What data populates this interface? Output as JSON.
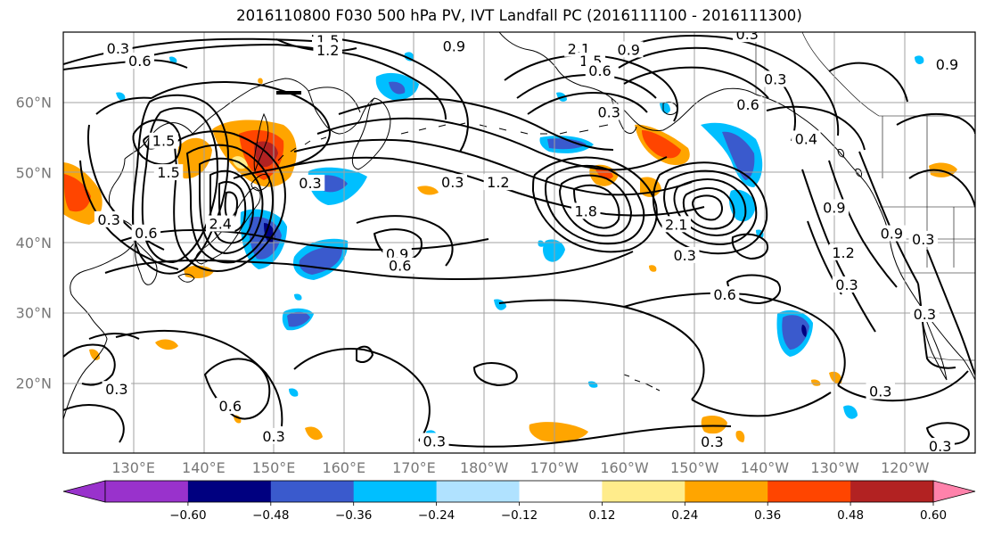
{
  "title": "2016110800 F030 500 hPa PV, IVT Landfall PC (2016111100 - 2016111300)",
  "map": {
    "projection": "PlateCarree",
    "extent": {
      "lon_min": 120,
      "lon_max": 250,
      "lat_min": 10,
      "lat_max": 70
    },
    "gridlines": true
  },
  "axes": {
    "lat_ticks": [
      {
        "value": 20,
        "label": "20°N"
      },
      {
        "value": 30,
        "label": "30°N"
      },
      {
        "value": 40,
        "label": "40°N"
      },
      {
        "value": 50,
        "label": "50°N"
      },
      {
        "value": 60,
        "label": "60°N"
      }
    ],
    "lon_ticks": [
      {
        "value": 130,
        "label": "130°E"
      },
      {
        "value": 140,
        "label": "140°E"
      },
      {
        "value": 150,
        "label": "150°E"
      },
      {
        "value": 160,
        "label": "160°E"
      },
      {
        "value": 170,
        "label": "170°E"
      },
      {
        "value": 180,
        "label": "180°W"
      },
      {
        "value": 190,
        "label": "170°W"
      },
      {
        "value": 200,
        "label": "160°W"
      },
      {
        "value": 210,
        "label": "150°W"
      },
      {
        "value": 220,
        "label": "140°W"
      },
      {
        "value": 230,
        "label": "130°W"
      },
      {
        "value": 240,
        "label": "120°W"
      }
    ]
  },
  "colorbar": {
    "extend": "both",
    "bounds": [
      -0.72,
      -0.6,
      -0.48,
      -0.36,
      -0.24,
      -0.12,
      0.12,
      0.24,
      0.36,
      0.48,
      0.6,
      0.72
    ],
    "tick_values": [
      -0.6,
      -0.48,
      -0.36,
      -0.24,
      -0.12,
      0.12,
      0.24,
      0.36,
      0.48,
      0.6
    ],
    "tick_labels": [
      "−0.60",
      "−0.48",
      "−0.36",
      "−0.24",
      "−0.12",
      "0.12",
      "0.24",
      "0.36",
      "0.48",
      "0.60"
    ],
    "colors": {
      "under": "#9932cc",
      "bins": [
        "#9932cc",
        "#000080",
        "#3a5acd",
        "#00bfff",
        "#b0e2ff",
        "#ffffff",
        "#ffec8b",
        "#ffa500",
        "#ff4500",
        "#b22222"
      ],
      "over": "#ff82ab"
    }
  },
  "pv_contour_labels": [
    {
      "text": "0.3",
      "lon": 127.8,
      "lat": 67.6
    },
    {
      "text": "0.6",
      "lon": 130.9,
      "lat": 65.8
    },
    {
      "text": "1.5",
      "lon": 157.7,
      "lat": 68.7
    },
    {
      "text": "1.2",
      "lon": 157.7,
      "lat": 67.3
    },
    {
      "text": "0.9",
      "lon": 175.7,
      "lat": 67.9
    },
    {
      "text": "2.1",
      "lon": 193.5,
      "lat": 67.5
    },
    {
      "text": "1.5",
      "lon": 195.2,
      "lat": 65.8
    },
    {
      "text": "0.6",
      "lon": 196.5,
      "lat": 64.4
    },
    {
      "text": "0.9",
      "lon": 200.6,
      "lat": 67.4
    },
    {
      "text": "0.3",
      "lon": 221.5,
      "lat": 63.2
    },
    {
      "text": "0.3",
      "lon": 217.5,
      "lat": 69.6
    },
    {
      "text": "0.9",
      "lon": 246.0,
      "lat": 65.3
    },
    {
      "text": "0.3",
      "lon": 197.8,
      "lat": 58.5
    },
    {
      "text": "0.6",
      "lon": 217.6,
      "lat": 59.6
    },
    {
      "text": "0.4",
      "lon": 225.9,
      "lat": 54.7
    },
    {
      "text": "1.5",
      "lon": 134.3,
      "lat": 54.4
    },
    {
      "text": "1.5",
      "lon": 135.0,
      "lat": 49.9
    },
    {
      "text": "0.3",
      "lon": 126.5,
      "lat": 43.2
    },
    {
      "text": "0.6",
      "lon": 131.8,
      "lat": 41.3
    },
    {
      "text": "2.4",
      "lon": 142.4,
      "lat": 42.6
    },
    {
      "text": "0.3",
      "lon": 155.2,
      "lat": 48.4
    },
    {
      "text": "0.3",
      "lon": 175.5,
      "lat": 48.5
    },
    {
      "text": "1.2",
      "lon": 182.0,
      "lat": 48.5
    },
    {
      "text": "1.8",
      "lon": 194.5,
      "lat": 44.4
    },
    {
      "text": "2.1",
      "lon": 207.4,
      "lat": 42.5
    },
    {
      "text": "0.9",
      "lon": 229.9,
      "lat": 44.9
    },
    {
      "text": "1.2",
      "lon": 231.2,
      "lat": 38.5
    },
    {
      "text": "0.9",
      "lon": 238.1,
      "lat": 41.2
    },
    {
      "text": "0.3",
      "lon": 242.6,
      "lat": 40.4
    },
    {
      "text": "0.3",
      "lon": 231.7,
      "lat": 33.9
    },
    {
      "text": "0.3",
      "lon": 208.6,
      "lat": 38.1
    },
    {
      "text": "0.9",
      "lon": 167.6,
      "lat": 38.3
    },
    {
      "text": "0.6",
      "lon": 168.0,
      "lat": 36.6
    },
    {
      "text": "0.6",
      "lon": 214.3,
      "lat": 32.5
    },
    {
      "text": "0.3",
      "lon": 242.8,
      "lat": 29.7
    },
    {
      "text": "0.3",
      "lon": 127.6,
      "lat": 19.0
    },
    {
      "text": "0.6",
      "lon": 143.8,
      "lat": 16.6
    },
    {
      "text": "0.3",
      "lon": 150.0,
      "lat": 12.3
    },
    {
      "text": "0.3",
      "lon": 172.9,
      "lat": 11.6
    },
    {
      "text": "0.3",
      "lon": 212.5,
      "lat": 11.5
    },
    {
      "text": "0.3",
      "lon": 236.5,
      "lat": 18.7
    },
    {
      "text": "0.3",
      "lon": 245.0,
      "lat": 10.9
    }
  ]
}
